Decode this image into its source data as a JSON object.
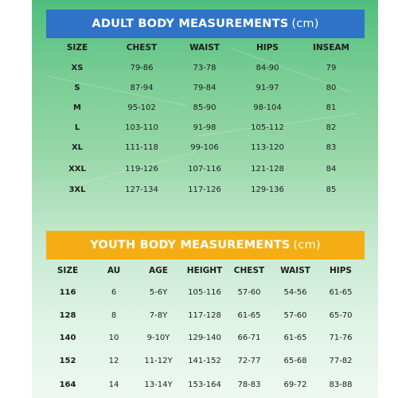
{
  "adult": {
    "title": "ADULT BODY MEASUREMENTS",
    "unit": "(cm)",
    "headers": [
      "SIZE",
      "CHEST",
      "WAIST",
      "HIPS",
      "INSEAM"
    ],
    "rows": [
      [
        "XS",
        "79-86",
        "73-78",
        "84-90",
        "79"
      ],
      [
        "S",
        "87-94",
        "79-84",
        "91-97",
        "80"
      ],
      [
        "M",
        "95-102",
        "85-90",
        "98-104",
        "81"
      ],
      [
        "L",
        "103-110",
        "91-98",
        "105-112",
        "82"
      ],
      [
        "XL",
        "111-118",
        "99-106",
        "113-120",
        "83"
      ],
      [
        "XXL",
        "119-126",
        "107-116",
        "121-128",
        "84"
      ],
      [
        "3XL",
        "127-134",
        "117-126",
        "129-136",
        "85"
      ]
    ]
  },
  "youth": {
    "title": "YOUTH BODY MEASUREMENTS",
    "unit": "(cm)",
    "headers": [
      "SIZE",
      "AU",
      "AGE",
      "HEIGHT",
      "CHEST",
      "WAIST",
      "HIPS"
    ],
    "rows": [
      [
        "116",
        "6",
        "5-6Y",
        "105-116",
        "57-60",
        "54-56",
        "61-65"
      ],
      [
        "128",
        "8",
        "7-8Y",
        "117-128",
        "61-65",
        "57-60",
        "65-70"
      ],
      [
        "140",
        "10",
        "9-10Y",
        "129-140",
        "66-71",
        "61-65",
        "71-76"
      ],
      [
        "152",
        "12",
        "11-12Y",
        "141-152",
        "72-77",
        "65-68",
        "77-82"
      ],
      [
        "164",
        "14",
        "13-14Y",
        "153-164",
        "78-83",
        "69-72",
        "83-88"
      ]
    ]
  },
  "colors": {
    "adult_banner": "#2f73c9",
    "youth_banner": "#f4ae13",
    "background_top": "#4fbf7e",
    "background_bottom": "#eef8f1"
  }
}
